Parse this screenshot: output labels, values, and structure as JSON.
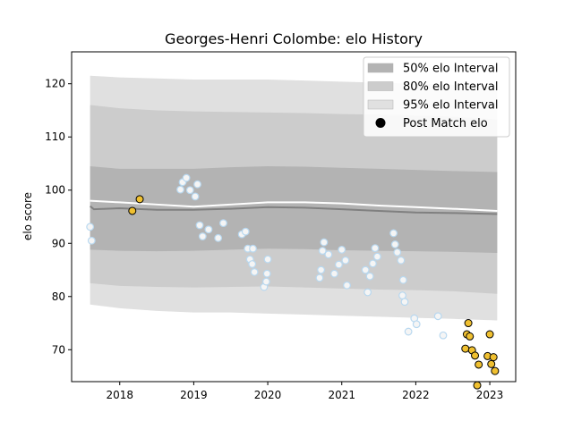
{
  "chart_data": {
    "type": "line",
    "title": "Georges-Henri Colombe: elo History",
    "xlabel": "",
    "ylabel": "elo score",
    "xlim": [
      2017.35,
      2023.35
    ],
    "ylim": [
      64.0,
      126.0
    ],
    "x_ticks": [
      2018,
      2019,
      2020,
      2021,
      2022,
      2023
    ],
    "x_tick_labels": [
      "2018",
      "2019",
      "2020",
      "2021",
      "2022",
      "2023"
    ],
    "y_ticks": [
      70,
      80,
      90,
      100,
      110,
      120
    ],
    "y_tick_labels": [
      "70",
      "80",
      "90",
      "100",
      "110",
      "120"
    ],
    "grid": false,
    "legend_position": "top-right",
    "legend": [
      {
        "label": "50% elo Interval",
        "kind": "patch",
        "color": "#b3b3b3"
      },
      {
        "label": "80% elo Interval",
        "kind": "patch",
        "color": "#cccccc"
      },
      {
        "label": "95% elo Interval",
        "kind": "patch",
        "color": "#e0e0e0"
      },
      {
        "label": "Post Match elo",
        "kind": "marker",
        "color": "#000000"
      }
    ],
    "bands": {
      "x": [
        2017.6,
        2018.0,
        2018.5,
        2019.0,
        2019.5,
        2020.0,
        2020.5,
        2021.0,
        2021.5,
        2022.0,
        2022.5,
        2023.1
      ],
      "p95": {
        "lower": [
          78.5,
          77.8,
          77.3,
          77.0,
          77.0,
          76.8,
          76.6,
          76.4,
          76.2,
          76.0,
          75.8,
          75.5
        ],
        "upper": [
          121.5,
          121.2,
          121.0,
          120.8,
          120.8,
          120.8,
          120.6,
          120.4,
          120.2,
          120.0,
          119.8,
          119.4
        ]
      },
      "p80": {
        "lower": [
          82.5,
          82.0,
          81.8,
          81.7,
          81.8,
          81.9,
          81.7,
          81.5,
          81.3,
          81.2,
          81.0,
          80.5
        ],
        "upper": [
          116.0,
          115.4,
          115.0,
          114.8,
          114.7,
          114.6,
          114.5,
          114.3,
          114.2,
          114.0,
          113.8,
          113.3
        ]
      },
      "p50": {
        "lower": [
          88.8,
          88.6,
          88.5,
          88.6,
          88.8,
          89.0,
          88.9,
          88.7,
          88.6,
          88.5,
          88.4,
          88.2
        ],
        "upper": [
          104.5,
          104.0,
          104.0,
          104.0,
          104.3,
          104.5,
          104.4,
          104.2,
          104.0,
          103.8,
          103.6,
          103.4
        ]
      }
    },
    "series": [
      {
        "kind": "line",
        "color": "#808080",
        "x": [
          2017.6,
          2017.65,
          2018.0,
          2018.5,
          2019.0,
          2019.5,
          2020.0,
          2020.5,
          2021.0,
          2021.5,
          2022.0,
          2022.5,
          2023.1
        ],
        "y": [
          97.0,
          96.4,
          96.6,
          96.3,
          96.3,
          96.5,
          96.8,
          96.7,
          96.4,
          96.1,
          95.8,
          95.7,
          95.5
        ]
      },
      {
        "kind": "line",
        "color": "#ffffff",
        "x": [
          2017.6,
          2018.0,
          2018.5,
          2019.0,
          2019.5,
          2020.0,
          2020.5,
          2021.0,
          2021.5,
          2022.0,
          2022.5,
          2023.1
        ],
        "y": [
          98.0,
          97.7,
          97.3,
          96.9,
          97.3,
          97.7,
          97.7,
          97.5,
          97.1,
          96.8,
          96.5,
          96.1
        ]
      }
    ],
    "matches_history": {
      "color": "#f5f5f5",
      "edge": "#b8d8f0",
      "points": [
        [
          2017.6,
          93.1
        ],
        [
          2017.62,
          90.5
        ],
        [
          2018.82,
          100.1
        ],
        [
          2018.85,
          101.5
        ],
        [
          2018.9,
          102.3
        ],
        [
          2018.95,
          100.0
        ],
        [
          2019.02,
          98.8
        ],
        [
          2019.05,
          101.1
        ],
        [
          2019.08,
          93.4
        ],
        [
          2019.12,
          91.3
        ],
        [
          2019.2,
          92.6
        ],
        [
          2019.33,
          91.0
        ],
        [
          2019.4,
          93.8
        ],
        [
          2019.65,
          91.7
        ],
        [
          2019.7,
          92.2
        ],
        [
          2019.73,
          89.0
        ],
        [
          2019.76,
          87.0
        ],
        [
          2019.79,
          86.1
        ],
        [
          2019.82,
          84.6
        ],
        [
          2019.8,
          89.0
        ],
        [
          2019.95,
          81.8
        ],
        [
          2019.98,
          82.8
        ],
        [
          2019.99,
          84.3
        ],
        [
          2020.0,
          87.0
        ],
        [
          2020.7,
          83.5
        ],
        [
          2020.72,
          85.0
        ],
        [
          2020.74,
          88.6
        ],
        [
          2020.76,
          90.2
        ],
        [
          2020.82,
          87.9
        ],
        [
          2020.9,
          84.3
        ],
        [
          2020.96,
          86.0
        ],
        [
          2021.0,
          88.8
        ],
        [
          2021.05,
          86.8
        ],
        [
          2021.07,
          82.1
        ],
        [
          2021.32,
          85.0
        ],
        [
          2021.35,
          80.8
        ],
        [
          2021.38,
          83.8
        ],
        [
          2021.42,
          86.2
        ],
        [
          2021.45,
          89.1
        ],
        [
          2021.48,
          87.5
        ],
        [
          2021.7,
          91.9
        ],
        [
          2021.72,
          89.8
        ],
        [
          2021.75,
          88.3
        ],
        [
          2021.8,
          86.8
        ],
        [
          2021.82,
          80.2
        ],
        [
          2021.85,
          79.0
        ],
        [
          2021.83,
          83.1
        ],
        [
          2021.9,
          73.4
        ],
        [
          2021.98,
          75.9
        ],
        [
          2022.01,
          74.8
        ],
        [
          2022.3,
          76.3
        ],
        [
          2022.37,
          72.7
        ]
      ]
    },
    "post_match": {
      "color": "#f0c030",
      "edge": "#000000",
      "points": [
        [
          2018.17,
          96.1
        ],
        [
          2018.27,
          98.3
        ],
        [
          2022.67,
          70.2
        ],
        [
          2022.69,
          72.9
        ],
        [
          2022.71,
          75.0
        ],
        [
          2022.73,
          72.5
        ],
        [
          2022.76,
          69.9
        ],
        [
          2022.8,
          68.9
        ],
        [
          2022.83,
          63.3
        ],
        [
          2022.85,
          67.2
        ],
        [
          2022.97,
          68.8
        ],
        [
          2023.0,
          72.9
        ],
        [
          2023.02,
          67.3
        ],
        [
          2023.05,
          68.6
        ],
        [
          2023.07,
          66.0
        ]
      ]
    }
  }
}
